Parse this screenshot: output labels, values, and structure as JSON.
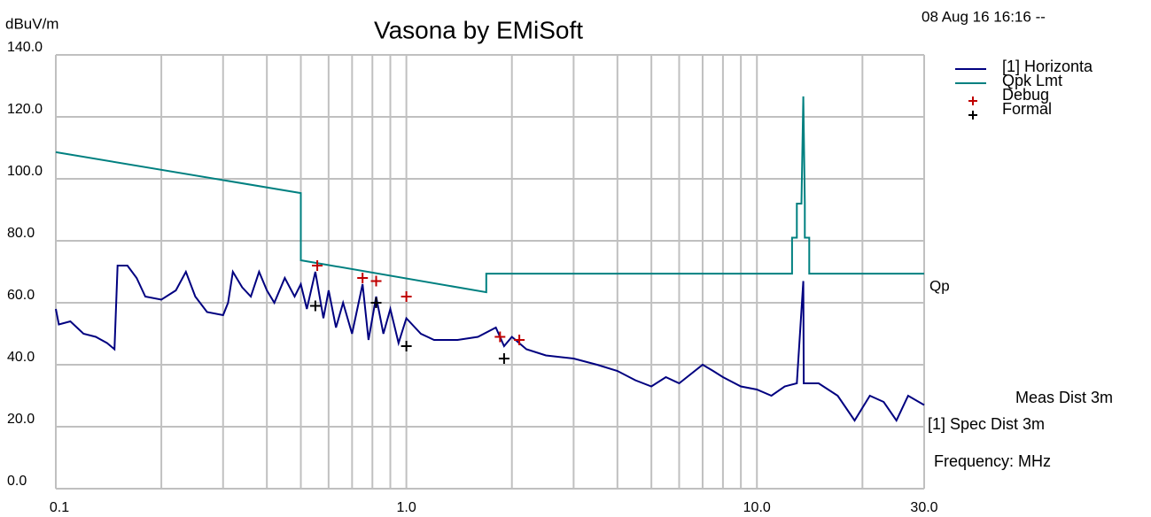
{
  "chart_data": {
    "type": "line",
    "title": "Vasona by EMiSoft",
    "y_label": "dBuV/m",
    "x_label": "Frequency: MHz",
    "annotations": [
      "08 Aug 16 16:16 --",
      "Qp",
      "Meas Dist 3m",
      "[1] Spec Dist 3m"
    ],
    "xscale": "log",
    "xlim": [
      0.1,
      30
    ],
    "xticks": [
      0.1,
      {
        "value": 1,
        "label": "1.0"
      },
      {
        "value": 10,
        "label": "10.0"
      },
      {
        "value": 30,
        "label": "30.0"
      }
    ],
    "xminor": [
      0.2,
      0.3,
      0.4,
      0.5,
      0.6,
      0.7,
      0.8,
      0.9,
      2,
      3,
      4,
      5,
      6,
      7,
      8,
      9,
      20
    ],
    "ylim": [
      0,
      140
    ],
    "yticks": [
      {
        "value": 0,
        "label": "0.0"
      },
      {
        "value": 20,
        "label": "20.0"
      },
      {
        "value": 40,
        "label": "40.0"
      },
      {
        "value": 60,
        "label": "60.0"
      },
      {
        "value": 80,
        "label": "80.0"
      },
      {
        "value": 100,
        "label": "100.0"
      },
      {
        "value": 120,
        "label": "120.0"
      },
      {
        "value": 140,
        "label": "140.0"
      }
    ],
    "grid": true,
    "legend": "right",
    "series": [
      {
        "name": "[1] Horizonta",
        "color": "#000080",
        "x": [
          0.1,
          0.102,
          0.11,
          0.12,
          0.13,
          0.14,
          0.147,
          0.15,
          0.16,
          0.17,
          0.18,
          0.2,
          0.22,
          0.235,
          0.25,
          0.27,
          0.3,
          0.31,
          0.32,
          0.34,
          0.36,
          0.38,
          0.4,
          0.42,
          0.45,
          0.48,
          0.5,
          0.52,
          0.55,
          0.58,
          0.6,
          0.63,
          0.66,
          0.7,
          0.75,
          0.78,
          0.82,
          0.86,
          0.9,
          0.95,
          1.0,
          1.1,
          1.2,
          1.4,
          1.6,
          1.8,
          1.9,
          2.0,
          2.2,
          2.5,
          3.0,
          3.5,
          4.0,
          4.5,
          5.0,
          5.5,
          6.0,
          7.0,
          7.5,
          8.0,
          9.0,
          10.0,
          11.0,
          12.0,
          13.0,
          13.56,
          13.6,
          15.0,
          17.0,
          19.0,
          21.0,
          23.0,
          25.0,
          27.0,
          30.0
        ],
        "values": [
          58,
          53,
          54,
          50,
          49,
          47,
          45,
          72,
          72,
          68,
          62,
          61,
          64,
          70,
          62,
          57,
          56,
          60,
          70,
          65,
          62,
          70,
          64,
          60,
          68,
          62,
          66,
          58,
          70,
          55,
          64,
          52,
          60,
          50,
          66,
          48,
          62,
          50,
          58,
          47,
          55,
          50,
          48,
          48,
          49,
          52,
          46,
          49,
          45,
          43,
          42,
          40,
          38,
          35,
          33,
          36,
          34,
          40,
          38,
          36,
          33,
          32,
          30,
          33,
          34,
          67,
          34,
          34,
          30,
          22,
          30,
          28,
          22,
          30,
          27
        ]
      },
      {
        "name": "Qpk Lmt",
        "color": "#008080",
        "x": [
          0.1,
          0.5,
          0.5,
          1.69,
          1.69,
          12.6,
          12.6,
          13.0,
          13.0,
          13.4,
          13.56,
          13.7,
          13.7,
          14.1,
          14.1,
          30
        ],
        "values": [
          108.6,
          95.4,
          73.7,
          63.4,
          69.4,
          69.4,
          81,
          81,
          92,
          92,
          126.6,
          92,
          81,
          81,
          69.4,
          69.4
        ]
      },
      {
        "name": "Debug",
        "color": "#c00000",
        "marker": "+",
        "x": [
          0.557,
          0.75,
          0.82,
          1.0,
          1.85,
          2.1
        ],
        "values": [
          72,
          68,
          67,
          62,
          49,
          48
        ]
      },
      {
        "name": "Formal",
        "color": "#000000",
        "marker": "+",
        "x": [
          0.55,
          0.82,
          1.0,
          1.9
        ],
        "values": [
          59,
          60,
          46,
          42
        ]
      }
    ]
  }
}
